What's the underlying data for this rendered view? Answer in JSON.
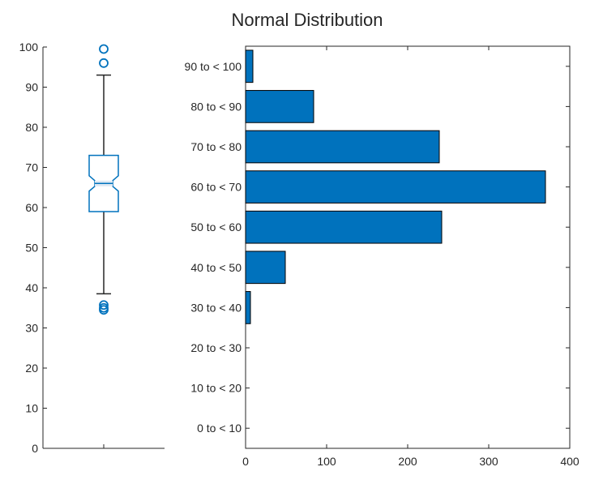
{
  "chart_data": [
    {
      "type": "box",
      "title": "",
      "ylim": [
        0,
        100
      ],
      "yticks": [
        0,
        10,
        20,
        30,
        40,
        50,
        60,
        70,
        80,
        90,
        100
      ],
      "stats": {
        "q1": 59,
        "median": 66,
        "q3": 73,
        "whisker_low": 38.5,
        "whisker_high": 93,
        "notch_low": 65.3,
        "notch_high": 66.7
      },
      "outliers": [
        99.5,
        96,
        35.7,
        35,
        34.5
      ],
      "color": "#0072BD"
    },
    {
      "type": "bar",
      "orientation": "horizontal",
      "title": "Normal Distribution",
      "categories": [
        "0 to < 10",
        "10 to < 20",
        "20 to < 30",
        "30 to < 40",
        "40 to < 50",
        "50 to < 60",
        "60 to < 70",
        "70 to < 80",
        "80 to < 90",
        "90 to < 100"
      ],
      "values": [
        0,
        0,
        0,
        6,
        49,
        242,
        370,
        239,
        84,
        9
      ],
      "xlim": [
        0,
        400
      ],
      "xticks": [
        0,
        100,
        200,
        300,
        400
      ],
      "color": "#0072BD"
    }
  ]
}
